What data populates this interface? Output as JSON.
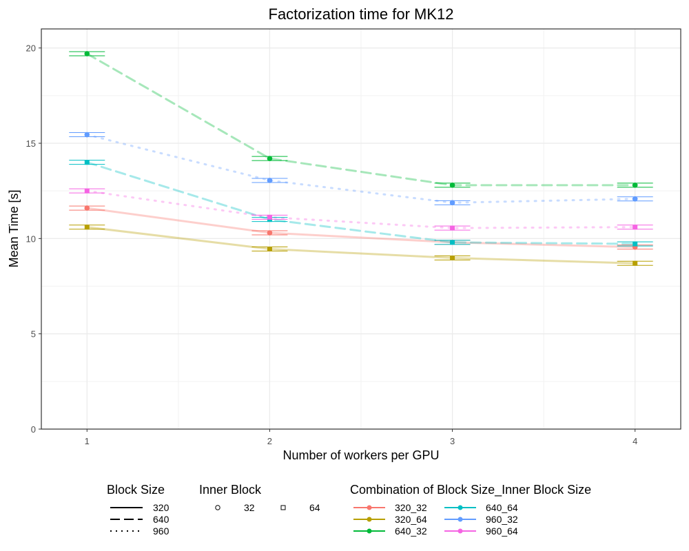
{
  "chart_data": {
    "type": "line",
    "title": "Factorization time for MK12",
    "xlabel": "Number of workers per GPU",
    "ylabel": "Mean Time [s]",
    "x": [
      1,
      2,
      3,
      4
    ],
    "xlim": [
      0.75,
      4.25
    ],
    "ylim": [
      0,
      21
    ],
    "x_ticks": [
      "1",
      "2",
      "3",
      "4"
    ],
    "y_ticks": [
      "0",
      "5",
      "10",
      "15",
      "20"
    ],
    "grid": true,
    "legend_position": "bottom",
    "series": [
      {
        "name": "320_32",
        "block": "320",
        "inner": "32",
        "color": "#F8766D",
        "values": [
          11.6,
          10.3,
          9.8,
          9.55
        ]
      },
      {
        "name": "320_64",
        "block": "320",
        "inner": "64",
        "color": "#B79F00",
        "values": [
          10.6,
          9.45,
          8.98,
          8.7
        ]
      },
      {
        "name": "640_32",
        "block": "640",
        "inner": "32",
        "color": "#00BA38",
        "values": [
          19.7,
          14.2,
          12.8,
          12.8
        ]
      },
      {
        "name": "640_64",
        "block": "640",
        "inner": "64",
        "color": "#00BFC4",
        "values": [
          14.0,
          11.0,
          9.8,
          9.72
        ]
      },
      {
        "name": "960_32",
        "block": "960",
        "inner": "32",
        "color": "#619CFF",
        "values": [
          15.45,
          13.05,
          11.88,
          12.08
        ]
      },
      {
        "name": "960_64",
        "block": "960",
        "inner": "64",
        "color": "#F564E3",
        "values": [
          12.5,
          11.12,
          10.55,
          10.6
        ]
      }
    ],
    "legend": {
      "block_title": "Block Size",
      "block_items": [
        "320",
        "640",
        "960"
      ],
      "inner_title": "Inner Block",
      "inner_items": [
        "32",
        "64"
      ],
      "combo_title": "Combination of Block Size_Inner Block Size",
      "combo_items": [
        "320_32",
        "320_64",
        "640_32",
        "640_64",
        "960_32",
        "960_64"
      ]
    }
  }
}
